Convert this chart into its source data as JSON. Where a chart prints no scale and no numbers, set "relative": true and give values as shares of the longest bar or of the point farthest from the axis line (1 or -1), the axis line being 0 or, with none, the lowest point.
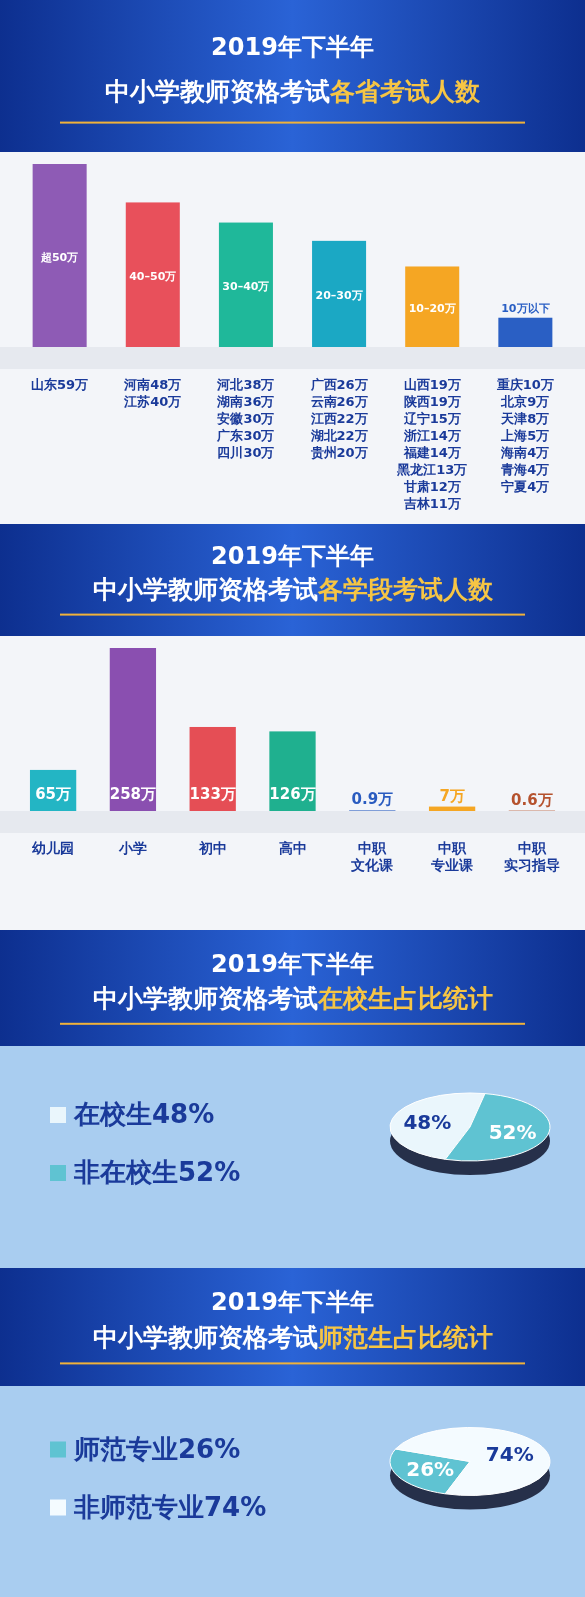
{
  "chart_data": [
    {
      "type": "bar",
      "title": "2019年下半年",
      "subtitle": "中小学教师资格考试各省考试人数",
      "relative": true,
      "categories": [
        "山东59万",
        "河南48万江苏40万",
        "河北38万湖南36万安徽30万广东30万四川30万",
        "广西26万云南26万江西22万湖北22万贵州20万",
        "山西19万陕西19万辽宁15万浙江14万福建14万黑龙江13万甘肃12万吉林11万",
        "重庆10万北京9万天津8万上海5万海南4万青海4万宁夏4万"
      ],
      "values": [
        1,
        0.79,
        0.68,
        0.58,
        0.44,
        0.16
      ],
      "colors": [
        "#8e5bb5",
        "#e8505b",
        "#1fb89a",
        "#1ba8c4",
        "#f5a623",
        "#2a5fc4"
      ],
      "annotations": [
        "超50万",
        "40–50万",
        "30–40万",
        "20–30万",
        "10–20万",
        "10万以下"
      ]
    },
    {
      "type": "bar",
      "title": "2019年下半年",
      "subtitle": "中小学教师资格考试各学段考试人数",
      "categories": [
        "幼儿园",
        "小学",
        "初中",
        "高中",
        "中职文化课",
        "中职专业课",
        "中职实习指导"
      ],
      "values": [
        65,
        258,
        133,
        126,
        0.9,
        7,
        0.6
      ],
      "colors": [
        "#23b5c4",
        "#8a4fb0",
        "#e54e55",
        "#1fb08f",
        "#2a5cc0",
        "#f5a623",
        "#b5522e"
      ],
      "value_labels": [
        "65万",
        "258万",
        "133万",
        "126万",
        "0.9万",
        "7万",
        "0.6万"
      ]
    },
    {
      "type": "pie",
      "title": "2019年下半年",
      "subtitle": "中小学教师资格考试在校生占比统计",
      "categories": [
        "在校生48%",
        "非在校生52%"
      ],
      "values": [
        48,
        52
      ],
      "colors": [
        "#eaf6fc",
        "#5fc3d2"
      ],
      "value_labels": [
        "48%",
        "52%"
      ],
      "legend": "left"
    },
    {
      "type": "pie",
      "title": "2019年下半年",
      "subtitle": "中小学教师资格考试师范生占比统计",
      "categories": [
        "师范专业26%",
        "非师范专业74%"
      ],
      "values": [
        26,
        74
      ],
      "colors": [
        "#5fc3d2",
        "#f4fbff"
      ],
      "value_labels": [
        "26%",
        "74%"
      ],
      "legend": "left"
    }
  ]
}
